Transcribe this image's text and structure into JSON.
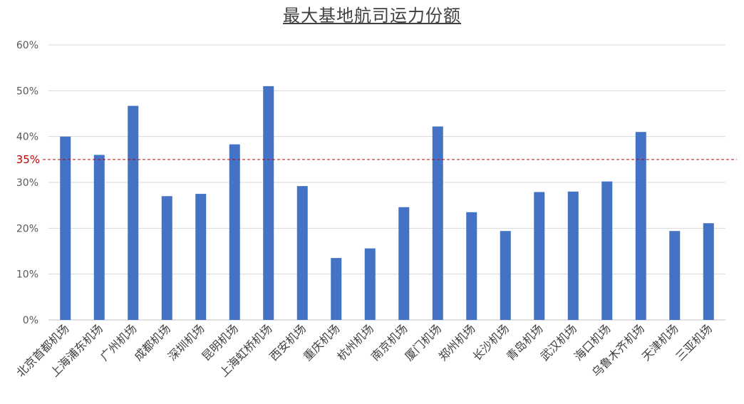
{
  "colors": {
    "bar": "#4472c4",
    "reference_line": "#c00000",
    "grid": "#d9d9d9",
    "axis": "#bfbfbf"
  },
  "chart_data": {
    "type": "bar",
    "title": "最大基地航司运力份额",
    "xlabel": "",
    "ylabel": "",
    "ylim": [
      0,
      60
    ],
    "y_ticks": [
      "0%",
      "10%",
      "20%",
      "30%",
      "40%",
      "50%",
      "60%"
    ],
    "y_unit": "%",
    "grid": "horizontal",
    "legend": "none",
    "categories": [
      "北京首都机场",
      "上海浦东机场",
      "广州机场",
      "成都机场",
      "深圳机场",
      "昆明机场",
      "上海虹桥机场",
      "西安机场",
      "重庆机场",
      "杭州机场",
      "南京机场",
      "厦门机场",
      "郑州机场",
      "长沙机场",
      "青岛机场",
      "武汉机场",
      "海口机场",
      "乌鲁木齐机场",
      "天津机场",
      "三亚机场"
    ],
    "values": [
      40,
      36,
      46.7,
      27,
      27.5,
      38.3,
      51,
      29.2,
      13.5,
      15.6,
      24.6,
      42.2,
      23.5,
      19.4,
      27.9,
      28,
      30.2,
      41,
      19.4,
      21.1
    ],
    "reference_line": {
      "value": 35,
      "label": "35%"
    }
  }
}
